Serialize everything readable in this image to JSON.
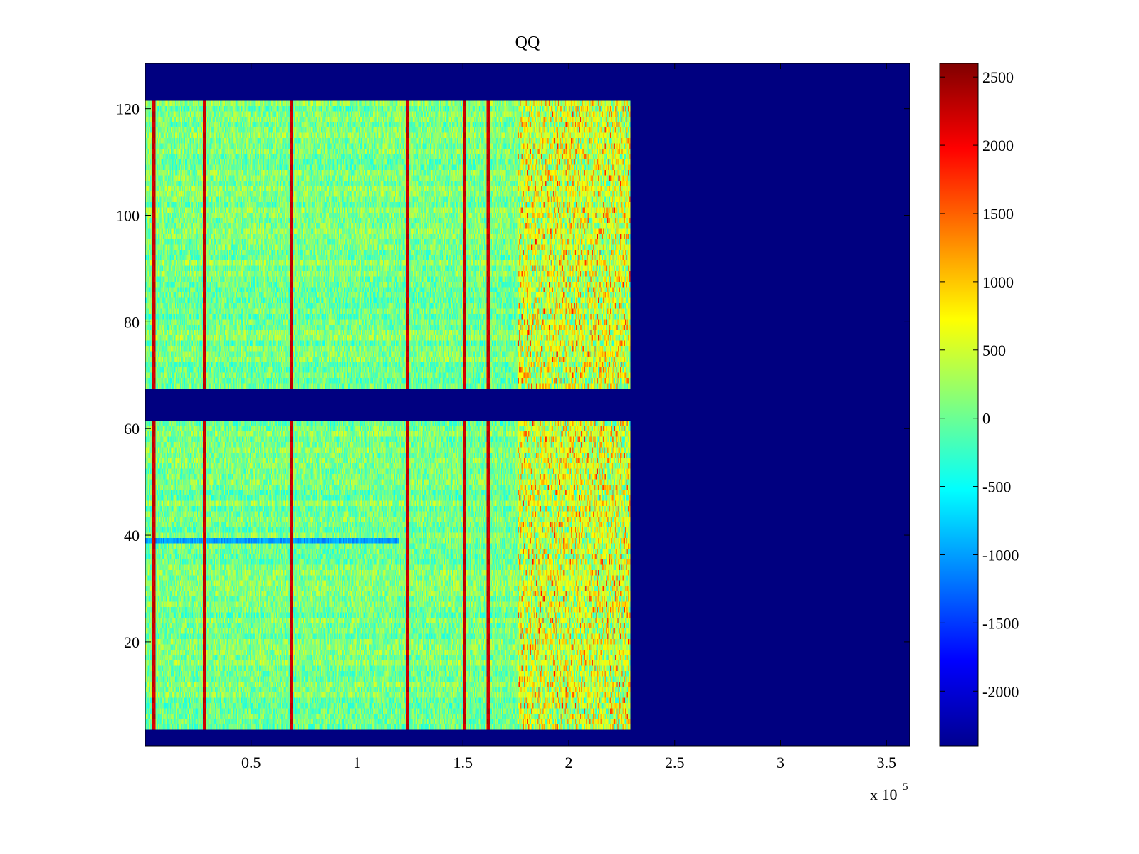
{
  "chart_data": {
    "type": "heatmap",
    "title": "QQ",
    "xlabel": "",
    "ylabel": "",
    "x_multiplier_label": "x 10",
    "x_multiplier_exponent": "5",
    "xlim": [
      0,
      361000
    ],
    "ylim": [
      0.5,
      128.5
    ],
    "x_ticks": [
      50000,
      100000,
      150000,
      200000,
      250000,
      300000,
      350000
    ],
    "x_tick_labels": [
      "0.5",
      "1",
      "1.5",
      "2",
      "2.5",
      "3",
      "3.5"
    ],
    "y_ticks": [
      20,
      40,
      60,
      80,
      100,
      120
    ],
    "y_tick_labels": [
      "20",
      "40",
      "60",
      "80",
      "100",
      "120"
    ],
    "colormap": "jet",
    "clim": [
      -2400,
      2600
    ],
    "colorbar_ticks": [
      2500,
      2000,
      1500,
      1000,
      500,
      0,
      -500,
      -1000,
      -1500,
      -2000
    ],
    "colorbar_tick_labels": [
      "2500",
      "2000",
      "1500",
      "1000",
      "500",
      "0",
      "-500",
      "-1000",
      "-1500",
      "-2000"
    ],
    "background_value": -2400,
    "data_blocks": [
      {
        "x_range": [
          0,
          229000
        ],
        "row_range": [
          4,
          61
        ]
      },
      {
        "x_range": [
          0,
          229000
        ],
        "row_range": [
          68,
          121
        ]
      }
    ],
    "typical_value_range": [
      -800,
      500
    ],
    "high_value_columns_x": [
      4000,
      28000,
      69000,
      124000,
      151000,
      162000
    ],
    "high_value_column_value": 2400,
    "warm_region": {
      "x_range": [
        176000,
        229000
      ],
      "value_range": [
        500,
        2000
      ]
    },
    "low_value_row": {
      "row": 39,
      "value": -1200
    }
  },
  "colors": {
    "background": "#ffffff",
    "axis": "#000000",
    "fill_value_color": "#00008f"
  }
}
